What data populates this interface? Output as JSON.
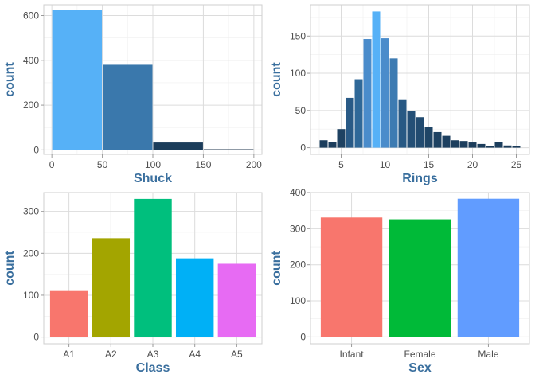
{
  "chart_data": [
    {
      "id": "shuck",
      "type": "histogram",
      "xlabel": "Shuck",
      "ylabel": "count",
      "xlim": [
        -8,
        208
      ],
      "ylim": [
        -20,
        648
      ],
      "xticks": [
        0,
        50,
        100,
        150,
        200
      ],
      "yticks": [
        0,
        200,
        400,
        600
      ],
      "grid": true,
      "bins": [
        {
          "x0": 0,
          "x1": 50,
          "count": 625,
          "color": "#56b1f7"
        },
        {
          "x0": 50,
          "x1": 100,
          "count": 380,
          "color": "#3a78ac"
        },
        {
          "x0": 100,
          "x1": 150,
          "count": 33,
          "color": "#1c3d5b"
        },
        {
          "x0": 150,
          "x1": 200,
          "count": 3,
          "color": "#132b43"
        }
      ]
    },
    {
      "id": "rings",
      "type": "histogram",
      "xlabel": "Rings",
      "ylabel": "count",
      "xlim": [
        1.5,
        26.5
      ],
      "ylim": [
        -9,
        192
      ],
      "xticks": [
        5,
        10,
        15,
        20,
        25
      ],
      "yticks": [
        0,
        50,
        100,
        150
      ],
      "grid": true,
      "bins": [
        {
          "x0": 2.5,
          "x1": 3.5,
          "count": 10,
          "color": "#1c3e5d"
        },
        {
          "x0": 3.5,
          "x1": 4.5,
          "count": 8,
          "color": "#1c3e5d"
        },
        {
          "x0": 4.5,
          "x1": 5.5,
          "count": 25,
          "color": "#1e4262"
        },
        {
          "x0": 5.5,
          "x1": 6.5,
          "count": 67,
          "color": "#295a86"
        },
        {
          "x0": 6.5,
          "x1": 7.5,
          "count": 92,
          "color": "#2f6898"
        },
        {
          "x0": 7.5,
          "x1": 8.5,
          "count": 146,
          "color": "#4a8ccb"
        },
        {
          "x0": 8.5,
          "x1": 9.5,
          "count": 183,
          "color": "#56b1f7"
        },
        {
          "x0": 9.5,
          "x1": 10.5,
          "count": 147,
          "color": "#4a8ccb"
        },
        {
          "x0": 10.5,
          "x1": 11.5,
          "count": 120,
          "color": "#3d7bb2"
        },
        {
          "x0": 11.5,
          "x1": 12.5,
          "count": 64,
          "color": "#285984"
        },
        {
          "x0": 12.5,
          "x1": 13.5,
          "count": 49,
          "color": "#244f76"
        },
        {
          "x0": 13.5,
          "x1": 14.5,
          "count": 41,
          "color": "#224b70"
        },
        {
          "x0": 14.5,
          "x1": 15.5,
          "count": 28,
          "color": "#1f4566"
        },
        {
          "x0": 15.5,
          "x1": 16.5,
          "count": 21,
          "color": "#1e4262"
        },
        {
          "x0": 16.5,
          "x1": 17.5,
          "count": 16,
          "color": "#1d4060"
        },
        {
          "x0": 17.5,
          "x1": 18.5,
          "count": 10,
          "color": "#1c3e5d"
        },
        {
          "x0": 18.5,
          "x1": 19.5,
          "count": 9,
          "color": "#1c3e5d"
        },
        {
          "x0": 19.5,
          "x1": 20.5,
          "count": 7,
          "color": "#1c3d5b"
        },
        {
          "x0": 20.5,
          "x1": 21.5,
          "count": 5,
          "color": "#1c3d5b"
        },
        {
          "x0": 21.5,
          "x1": 22.5,
          "count": 2,
          "color": "#1b3c5a"
        },
        {
          "x0": 22.5,
          "x1": 23.5,
          "count": 8,
          "color": "#1c3e5d"
        },
        {
          "x0": 23.5,
          "x1": 24.5,
          "count": 3,
          "color": "#1b3c5a"
        },
        {
          "x0": 24.5,
          "x1": 25.5,
          "count": 2,
          "color": "#1b3c5a"
        }
      ]
    },
    {
      "id": "class",
      "type": "bar",
      "xlabel": "Class",
      "ylabel": "count",
      "ylim": [
        -16,
        345
      ],
      "yticks": [
        0,
        100,
        200,
        300
      ],
      "grid": true,
      "categories": [
        "A1",
        "A2",
        "A3",
        "A4",
        "A5"
      ],
      "values": [
        110,
        236,
        330,
        188,
        175
      ],
      "colors": [
        "#f8766d",
        "#a3a500",
        "#00bf7d",
        "#00b0f6",
        "#e76bf3"
      ]
    },
    {
      "id": "sex",
      "type": "bar",
      "xlabel": "Sex",
      "ylabel": "count",
      "ylim": [
        -19,
        400
      ],
      "yticks": [
        0,
        100,
        200,
        300,
        400
      ],
      "grid": true,
      "categories": [
        "Infant",
        "Female",
        "Male"
      ],
      "values": [
        331,
        326,
        383
      ],
      "colors": [
        "#f8766d",
        "#00ba38",
        "#619cff"
      ]
    }
  ]
}
